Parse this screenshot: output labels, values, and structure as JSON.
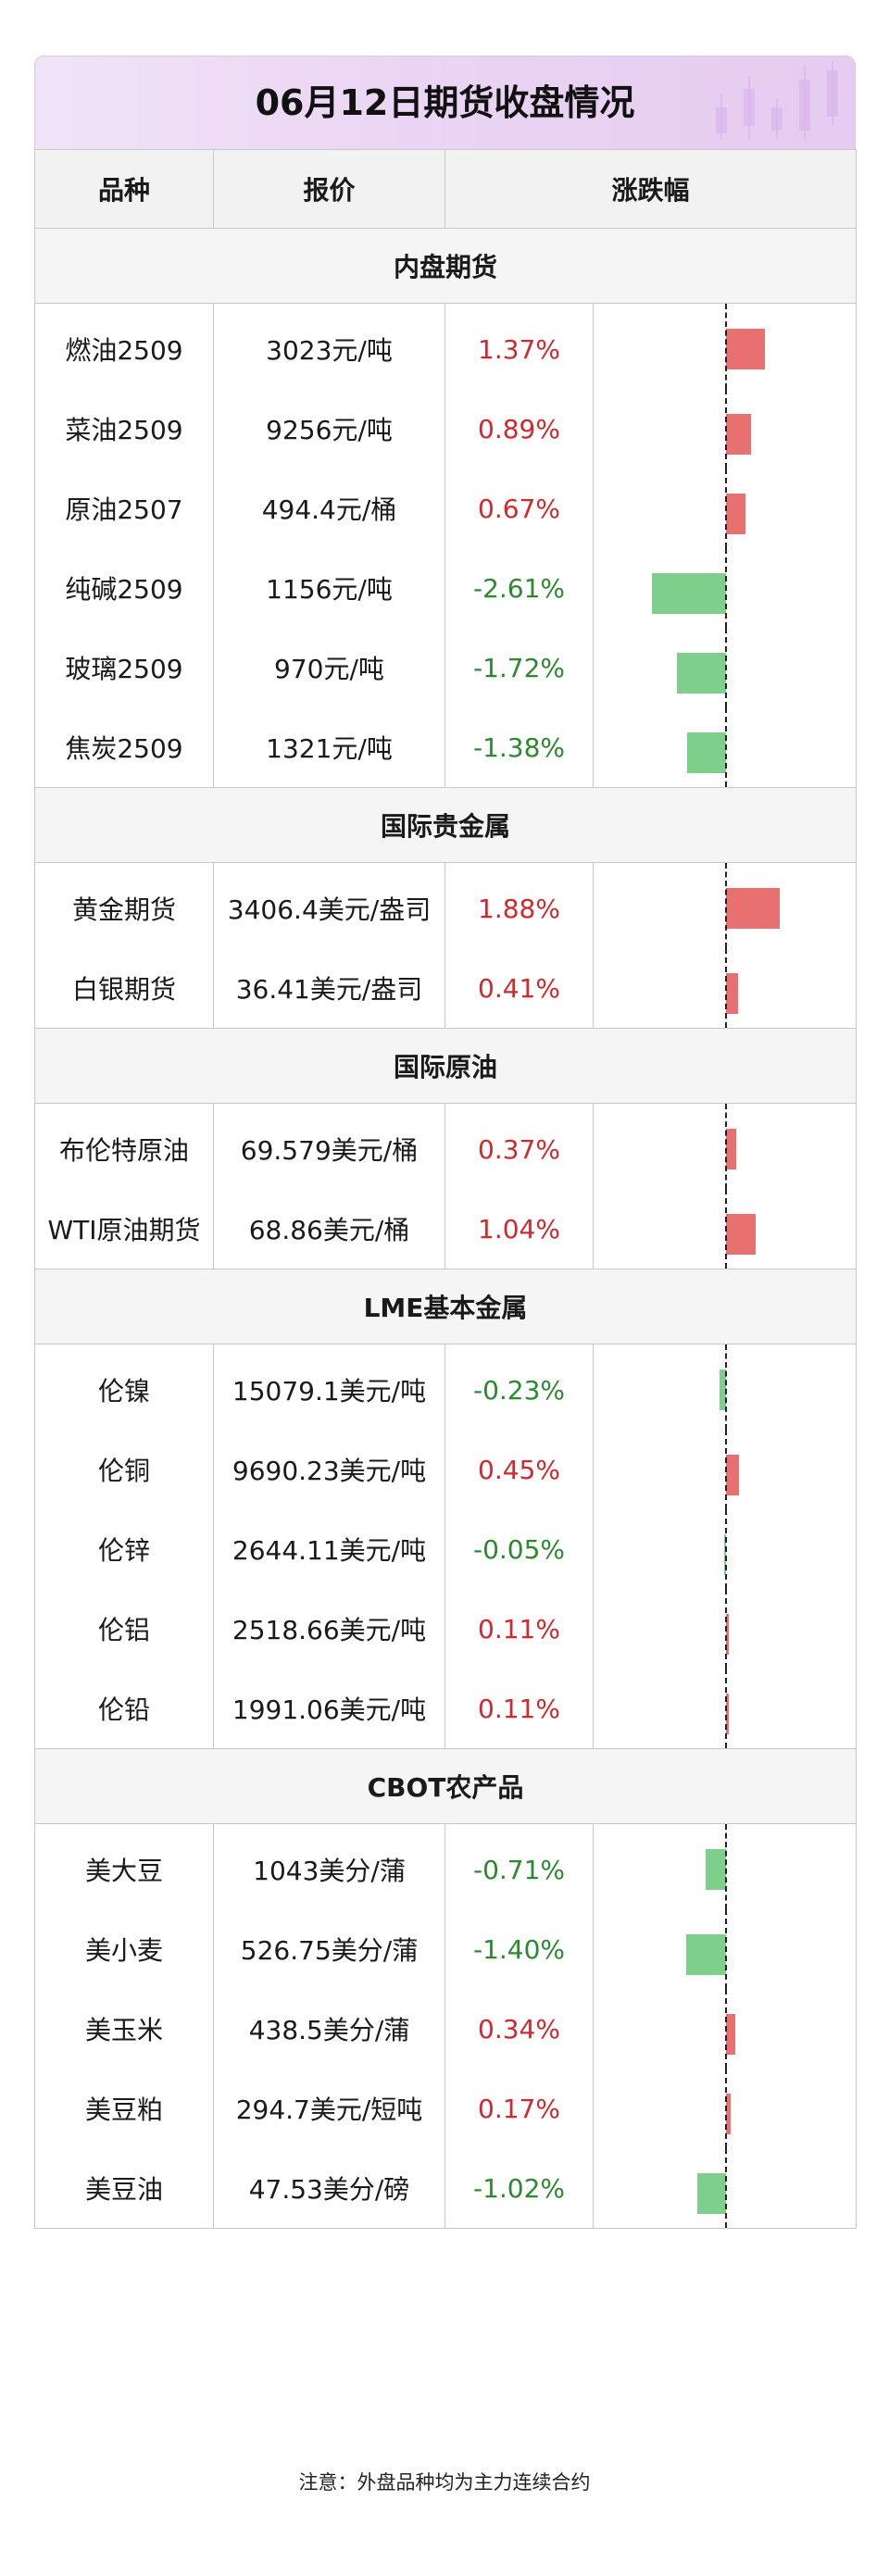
{
  "title": "06月12日期货收盘情况",
  "headers": {
    "variety": "品种",
    "price": "报价",
    "change": "涨跌幅"
  },
  "axis_max_abs": 2.61,
  "colors": {
    "up_text": "#d3272d",
    "down_text": "#2a8a2e",
    "up_bar": "#e87070",
    "down_bar": "#7fcf8c"
  },
  "sections": [
    {
      "title": "内盘期货",
      "rows": [
        {
          "name": "燃油2509",
          "price": "3023元/吨",
          "pct": "1.37%",
          "value": 1.37
        },
        {
          "name": "菜油2509",
          "price": "9256元/吨",
          "pct": "0.89%",
          "value": 0.89
        },
        {
          "name": "原油2507",
          "price": "494.4元/桶",
          "pct": "0.67%",
          "value": 0.67
        },
        {
          "name": "纯碱2509",
          "price": "1156元/吨",
          "pct": "-2.61%",
          "value": -2.61
        },
        {
          "name": "玻璃2509",
          "price": "970元/吨",
          "pct": "-1.72%",
          "value": -1.72
        },
        {
          "name": "焦炭2509",
          "price": "1321元/吨",
          "pct": "-1.38%",
          "value": -1.38
        }
      ]
    },
    {
      "title": "国际贵金属",
      "rows": [
        {
          "name": "黄金期货",
          "price": "3406.4美元/盎司",
          "pct": "1.88%",
          "value": 1.88
        },
        {
          "name": "白银期货",
          "price": "36.41美元/盎司",
          "pct": "0.41%",
          "value": 0.41
        }
      ]
    },
    {
      "title": "国际原油",
      "rows": [
        {
          "name": "布伦特原油",
          "price": "69.579美元/桶",
          "pct": "0.37%",
          "value": 0.37
        },
        {
          "name": "WTI原油期货",
          "price": "68.86美元/桶",
          "pct": "1.04%",
          "value": 1.04
        }
      ]
    },
    {
      "title": "LME基本金属",
      "rows": [
        {
          "name": "伦镍",
          "price": "15079.1美元/吨",
          "pct": "-0.23%",
          "value": -0.23
        },
        {
          "name": "伦铜",
          "price": "9690.23美元/吨",
          "pct": "0.45%",
          "value": 0.45
        },
        {
          "name": "伦锌",
          "price": "2644.11美元/吨",
          "pct": "-0.05%",
          "value": -0.05
        },
        {
          "name": "伦铝",
          "price": "2518.66美元/吨",
          "pct": "0.11%",
          "value": 0.11
        },
        {
          "name": "伦铅",
          "price": "1991.06美元/吨",
          "pct": "0.11%",
          "value": 0.11
        }
      ]
    },
    {
      "title": "CBOT农产品",
      "rows": [
        {
          "name": "美大豆",
          "price": "1043美分/蒲",
          "pct": "-0.71%",
          "value": -0.71
        },
        {
          "name": "美小麦",
          "price": "526.75美分/蒲",
          "pct": "-1.40%",
          "value": -1.4
        },
        {
          "name": "美玉米",
          "price": "438.5美分/蒲",
          "pct": "0.34%",
          "value": 0.34
        },
        {
          "name": "美豆粕",
          "price": "294.7美元/短吨",
          "pct": "0.17%",
          "value": 0.17
        },
        {
          "name": "美豆油",
          "price": "47.53美分/磅",
          "pct": "-1.02%",
          "value": -1.02
        }
      ]
    }
  ],
  "note": "注意：外盘品种均为主力连续合约",
  "chart_data": {
    "type": "bar",
    "categories": [
      "燃油2509",
      "菜油2509",
      "原油2507",
      "纯碱2509",
      "玻璃2509",
      "焦炭2509",
      "黄金期货",
      "白银期货",
      "布伦特原油",
      "WTI原油期货",
      "伦镍",
      "伦铜",
      "伦锌",
      "伦铝",
      "伦铅",
      "美大豆",
      "美小麦",
      "美玉米",
      "美豆粕",
      "美豆油"
    ],
    "values": [
      1.37,
      0.89,
      0.67,
      -2.61,
      -1.72,
      -1.38,
      1.88,
      0.41,
      0.37,
      1.04,
      -0.23,
      0.45,
      -0.05,
      0.11,
      0.11,
      -0.71,
      -1.4,
      0.34,
      0.17,
      -1.02
    ],
    "title": "06月12日期货收盘情况",
    "xlabel": "",
    "ylabel": "涨跌幅"
  }
}
